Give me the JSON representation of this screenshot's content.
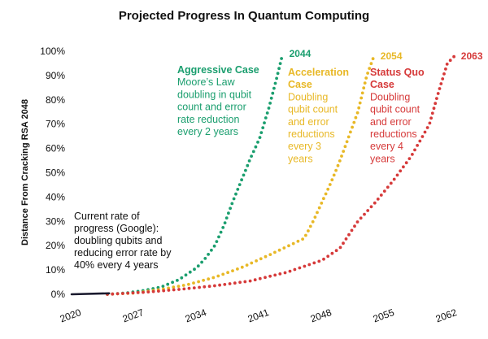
{
  "chart_data": {
    "type": "scatter",
    "title": "Projected Progress In Quantum Computing",
    "xlabel": "",
    "ylabel": "Distance From Cracking RSA 2048",
    "xlim": [
      2020,
      2064
    ],
    "ylim": [
      0,
      100
    ],
    "xticks": [
      "2020",
      "2027",
      "2034",
      "2041",
      "2048",
      "2055",
      "2062"
    ],
    "xtick_values": [
      2020,
      2027,
      2034,
      2041,
      2048,
      2055,
      2062
    ],
    "yticks": [
      "0%",
      "10%",
      "20%",
      "30%",
      "40%",
      "50%",
      "60%",
      "70%",
      "80%",
      "90%",
      "100%"
    ],
    "ytick_values": [
      0,
      10,
      20,
      30,
      40,
      50,
      60,
      70,
      80,
      90,
      100
    ],
    "current_progress": {
      "name": "Current rate",
      "color": "#1a1a2e",
      "x": [
        2020,
        2024.2
      ],
      "y": [
        0,
        0.4
      ],
      "note_lines": [
        "Current rate of",
        "progress (Google):",
        "doubling qubits and",
        "reducing error rate by",
        "40% every 4 years"
      ]
    },
    "series": [
      {
        "name": "Aggressive Case",
        "color": "#1a9e6e",
        "end_label": "2044",
        "desc_lines": [
          "Moore’s Law",
          "doubling in qubit",
          "count and error",
          "rate reduction",
          "every 2 years"
        ],
        "x": [
          2024,
          2026,
          2028,
          2030,
          2032,
          2034,
          2035,
          2036,
          2037,
          2038,
          2039,
          2040,
          2041,
          2042,
          2043,
          2043.6
        ],
        "y": [
          0,
          0.5,
          1.5,
          3,
          6,
          11,
          15,
          20,
          28,
          38,
          47,
          56,
          64,
          76,
          90,
          99
        ]
      },
      {
        "name": "Acceleration Case",
        "color": "#e8b826",
        "end_label": "2054",
        "desc_lines": [
          "Doubling",
          "qubit count",
          "and error",
          "reductions",
          "every 3",
          "years"
        ],
        "x": [
          2024,
          2027,
          2030,
          2033,
          2036,
          2039,
          2042,
          2044,
          2046,
          2047,
          2048,
          2049,
          2050,
          2051,
          2052,
          2053,
          2053.8
        ],
        "y": [
          0,
          0.5,
          2,
          4,
          7,
          11,
          16,
          19.5,
          23,
          30,
          38,
          46,
          55,
          65,
          75,
          90,
          98
        ]
      },
      {
        "name": "Status Quo Case",
        "color": "#d63a3a",
        "end_label": "2063",
        "desc_lines": [
          "Doubling",
          "qubit count",
          "and error",
          "reductions",
          "every 4",
          "years"
        ],
        "x": [
          2024,
          2028,
          2032,
          2036,
          2040,
          2044,
          2048,
          2050,
          2052,
          2054,
          2056,
          2058,
          2060,
          2061,
          2062,
          2062.8
        ],
        "y": [
          0,
          0.8,
          2,
          3.5,
          5.5,
          9,
          14,
          19,
          30,
          38,
          47,
          57,
          70,
          83,
          95,
          98
        ]
      }
    ]
  }
}
